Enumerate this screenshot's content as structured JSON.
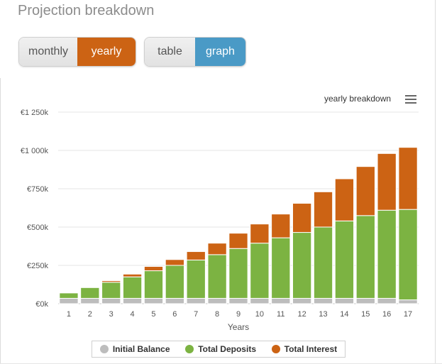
{
  "page": {
    "title": "Projection breakdown"
  },
  "view_toggle": {
    "monthly_label": "monthly",
    "yearly_label": "yearly",
    "selected": "yearly"
  },
  "mode_toggle": {
    "table_label": "table",
    "graph_label": "graph",
    "selected": "graph"
  },
  "chart_menu": {
    "label": "yearly breakdown",
    "icon": "hamburger-menu-icon"
  },
  "colors": {
    "initial": "#bdbdbd",
    "deposits": "#7cb342",
    "interest": "#cc6314",
    "accent_orange": "#cc6314",
    "accent_blue": "#4a9ac6"
  },
  "chart_data": {
    "type": "bar",
    "stacked": true,
    "categories": [
      "1",
      "2",
      "3",
      "4",
      "5",
      "6",
      "7",
      "8",
      "9",
      "10",
      "11",
      "12",
      "13",
      "14",
      "15",
      "16",
      "17"
    ],
    "xlabel": "Years",
    "ylabel": "",
    "ylim": [
      0,
      1250000
    ],
    "yticks": [
      0,
      250000,
      500000,
      750000,
      1000000,
      1250000
    ],
    "ytick_labels": [
      "€0k",
      "€250k",
      "€500k",
      "€750k",
      "€1 000k",
      "€1 250k"
    ],
    "grid": true,
    "legend_position": "bottom",
    "series": [
      {
        "name": "Initial Balance",
        "values": [
          35000,
          35000,
          35000,
          35000,
          35000,
          35000,
          35000,
          35000,
          35000,
          35000,
          35000,
          35000,
          35000,
          35000,
          35000,
          35000,
          25000
        ]
      },
      {
        "name": "Total Deposits",
        "values": [
          35000,
          70000,
          105000,
          140000,
          180000,
          215000,
          250000,
          285000,
          325000,
          360000,
          395000,
          430000,
          465000,
          505000,
          540000,
          575000,
          590000
        ]
      },
      {
        "name": "Total Interest",
        "values": [
          0,
          0,
          10000,
          18000,
          28000,
          38000,
          55000,
          75000,
          100000,
          125000,
          155000,
          190000,
          230000,
          275000,
          320000,
          370000,
          405000
        ]
      }
    ]
  }
}
